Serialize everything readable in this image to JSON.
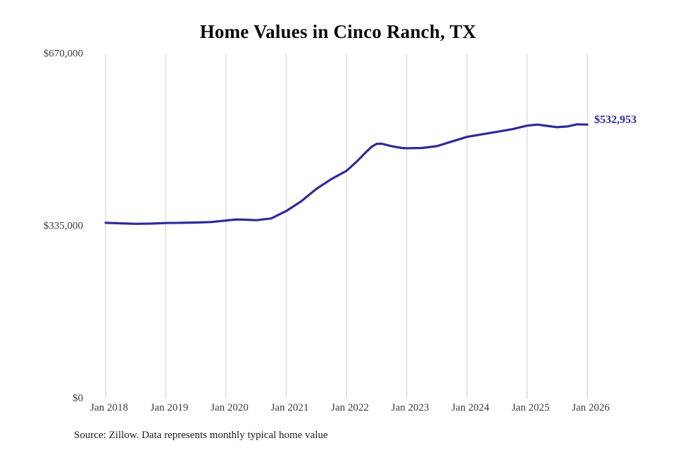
{
  "title": "Home Values in Cinco Ranch, TX",
  "source_note": "Source: Zillow. Data represents monthly typical home value",
  "colors": {
    "line": "#2e2a99",
    "annotation": "#2e2a99",
    "gridline": "#d9d9d9",
    "tick_text": "#3c3c3c",
    "background": "#ffffff"
  },
  "chart_data": {
    "type": "line",
    "title": "Home Values in Cinco Ranch, TX",
    "xlabel": "",
    "ylabel": "",
    "xlim": [
      2018,
      2026
    ],
    "ylim": [
      0,
      670000
    ],
    "grid": "vertical-only",
    "legend": "none",
    "y_ticks": [
      {
        "value": 0,
        "label": "$0"
      },
      {
        "value": 335000,
        "label": "$335,000"
      },
      {
        "value": 670000,
        "label": "$670,000"
      }
    ],
    "x_ticks": [
      {
        "value": 2018,
        "label": "Jan 2018"
      },
      {
        "value": 2019,
        "label": "Jan 2019"
      },
      {
        "value": 2020,
        "label": "Jan 2020"
      },
      {
        "value": 2021,
        "label": "Jan 2021"
      },
      {
        "value": 2022,
        "label": "Jan 2022"
      },
      {
        "value": 2023,
        "label": "Jan 2023"
      },
      {
        "value": 2024,
        "label": "Jan 2024"
      },
      {
        "value": 2025,
        "label": "Jan 2025"
      },
      {
        "value": 2026,
        "label": "Jan 2026"
      }
    ],
    "annotation": {
      "label": "$532,953",
      "value": 532953,
      "x": 2026
    },
    "series": [
      {
        "name": "Monthly typical home value",
        "points": [
          [
            2018.0,
            342000
          ],
          [
            2018.25,
            341000
          ],
          [
            2018.5,
            340000
          ],
          [
            2018.75,
            340500
          ],
          [
            2019.0,
            341500
          ],
          [
            2019.25,
            342000
          ],
          [
            2019.5,
            342500
          ],
          [
            2019.75,
            343500
          ],
          [
            2020.0,
            346500
          ],
          [
            2020.17,
            348500
          ],
          [
            2020.33,
            348000
          ],
          [
            2020.5,
            347000
          ],
          [
            2020.75,
            350500
          ],
          [
            2021.0,
            365000
          ],
          [
            2021.25,
            384000
          ],
          [
            2021.5,
            408000
          ],
          [
            2021.75,
            427000
          ],
          [
            2022.0,
            443000
          ],
          [
            2022.17,
            461000
          ],
          [
            2022.33,
            480000
          ],
          [
            2022.42,
            490000
          ],
          [
            2022.5,
            495500
          ],
          [
            2022.58,
            496000
          ],
          [
            2022.75,
            491000
          ],
          [
            2022.92,
            487500
          ],
          [
            2023.0,
            487000
          ],
          [
            2023.25,
            487500
          ],
          [
            2023.5,
            491000
          ],
          [
            2023.75,
            500000
          ],
          [
            2024.0,
            509000
          ],
          [
            2024.25,
            514000
          ],
          [
            2024.5,
            519000
          ],
          [
            2024.75,
            524000
          ],
          [
            2025.0,
            531000
          ],
          [
            2025.17,
            533000
          ],
          [
            2025.33,
            530500
          ],
          [
            2025.5,
            528000
          ],
          [
            2025.67,
            529500
          ],
          [
            2025.83,
            533500
          ],
          [
            2026.0,
            532953
          ]
        ]
      }
    ]
  }
}
